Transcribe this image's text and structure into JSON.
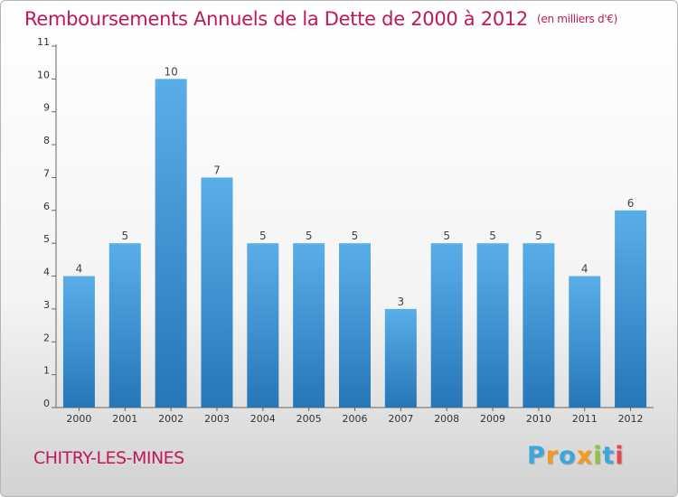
{
  "title": "Remboursements Annuels de la Dette de 2000 à 2012",
  "title_unit": "(en milliers d'€)",
  "commune": "CHITRY-LES-MINES",
  "logo": {
    "text": "Proxiti",
    "letters": [
      {
        "ch": "P",
        "color": "#3aa7de"
      },
      {
        "ch": "r",
        "color": "#f39a1f"
      },
      {
        "ch": "o",
        "color": "#3aa7de"
      },
      {
        "ch": "x",
        "color": "#f39a1f"
      },
      {
        "ch": "i",
        "color": "#8cc63f"
      },
      {
        "ch": "t",
        "color": "#3aa7de"
      },
      {
        "ch": "i",
        "color": "#e9474d"
      }
    ]
  },
  "chart_data": {
    "type": "bar",
    "categories": [
      "2000",
      "2001",
      "2002",
      "2003",
      "2004",
      "2005",
      "2006",
      "2007",
      "2008",
      "2009",
      "2010",
      "2011",
      "2012"
    ],
    "values": [
      4,
      5,
      10,
      7,
      5,
      5,
      5,
      3,
      5,
      5,
      5,
      4,
      6
    ],
    "ylim": [
      0,
      11
    ],
    "yticks": [
      0,
      1,
      2,
      3,
      4,
      5,
      6,
      7,
      8,
      9,
      10,
      11
    ],
    "grid": false,
    "bar_color": "#3d93d4"
  }
}
